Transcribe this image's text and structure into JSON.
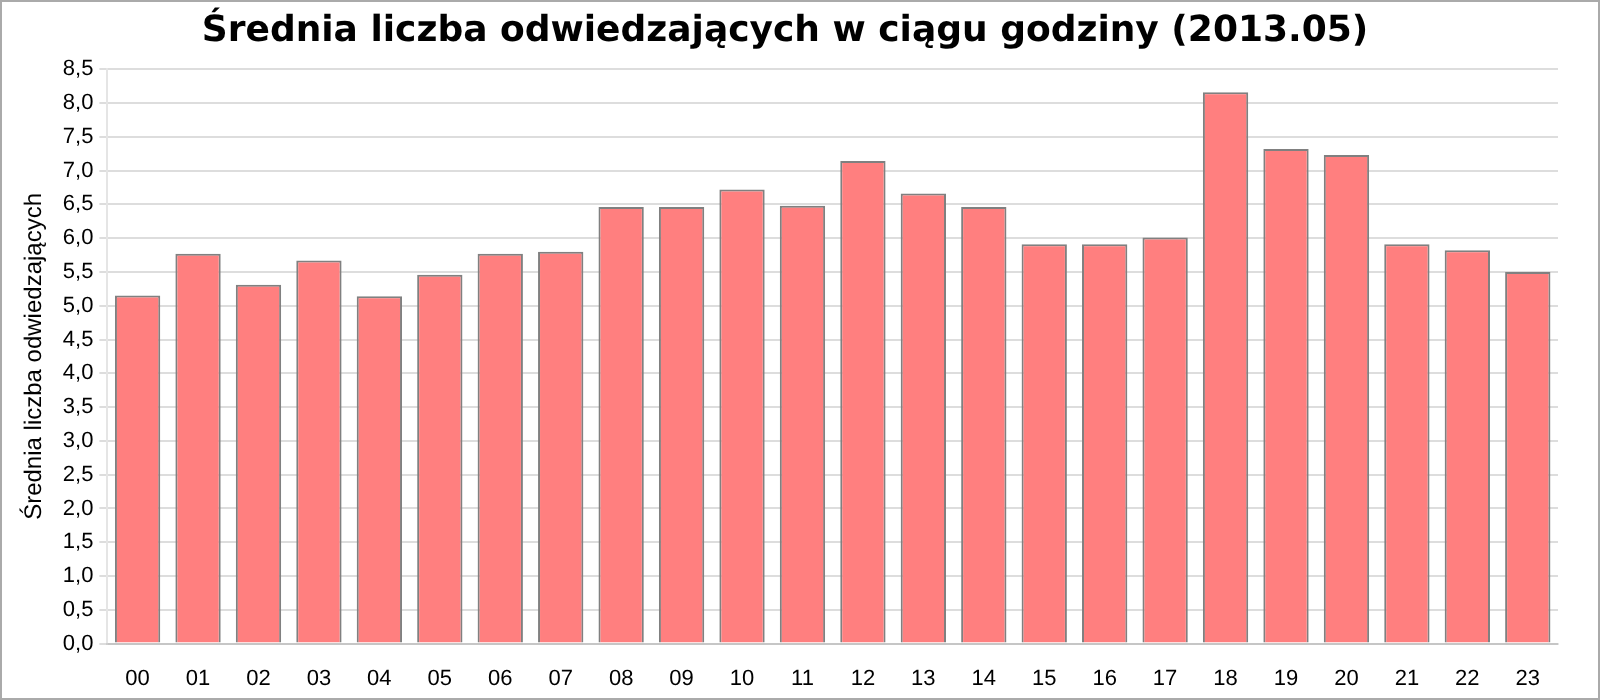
{
  "chart_data": {
    "type": "bar",
    "title": "Średnia liczba odwiedzających w ciągu godziny (2013.05)",
    "ylabel": "Średnia liczba odwiedzających",
    "categories": [
      "00",
      "01",
      "02",
      "03",
      "04",
      "05",
      "06",
      "07",
      "08",
      "09",
      "10",
      "11",
      "12",
      "13",
      "14",
      "15",
      "16",
      "17",
      "18",
      "19",
      "20",
      "21",
      "22",
      "23"
    ],
    "values": [
      5.15,
      5.77,
      5.31,
      5.67,
      5.14,
      5.46,
      5.77,
      5.8,
      6.46,
      6.46,
      6.72,
      6.48,
      7.14,
      6.66,
      6.46,
      5.91,
      5.91,
      6.01,
      8.16,
      7.32,
      7.23,
      5.91,
      5.82,
      5.5
    ],
    "color": "#ff7f7f",
    "ylim": [
      0,
      8.5
    ],
    "yticks": [
      {
        "value": 0,
        "label": "0,0"
      },
      {
        "value": 0.5,
        "label": "0,5"
      },
      {
        "value": 1,
        "label": "1,0"
      },
      {
        "value": 1.5,
        "label": "1,5"
      },
      {
        "value": 2,
        "label": "2,0"
      },
      {
        "value": 2.5,
        "label": "2,5"
      },
      {
        "value": 3,
        "label": "3,0"
      },
      {
        "value": 3.5,
        "label": "3,5"
      },
      {
        "value": 4,
        "label": "4,0"
      },
      {
        "value": 4.5,
        "label": "4,5"
      },
      {
        "value": 5,
        "label": "5,0"
      },
      {
        "value": 5.5,
        "label": "5,5"
      },
      {
        "value": 6,
        "label": "6,0"
      },
      {
        "value": 6.5,
        "label": "6,5"
      },
      {
        "value": 7,
        "label": "7,0"
      },
      {
        "value": 7.5,
        "label": "7,5"
      },
      {
        "value": 8,
        "label": "8,0"
      },
      {
        "value": 8.5,
        "label": "8,5"
      }
    ],
    "grid": "y"
  }
}
